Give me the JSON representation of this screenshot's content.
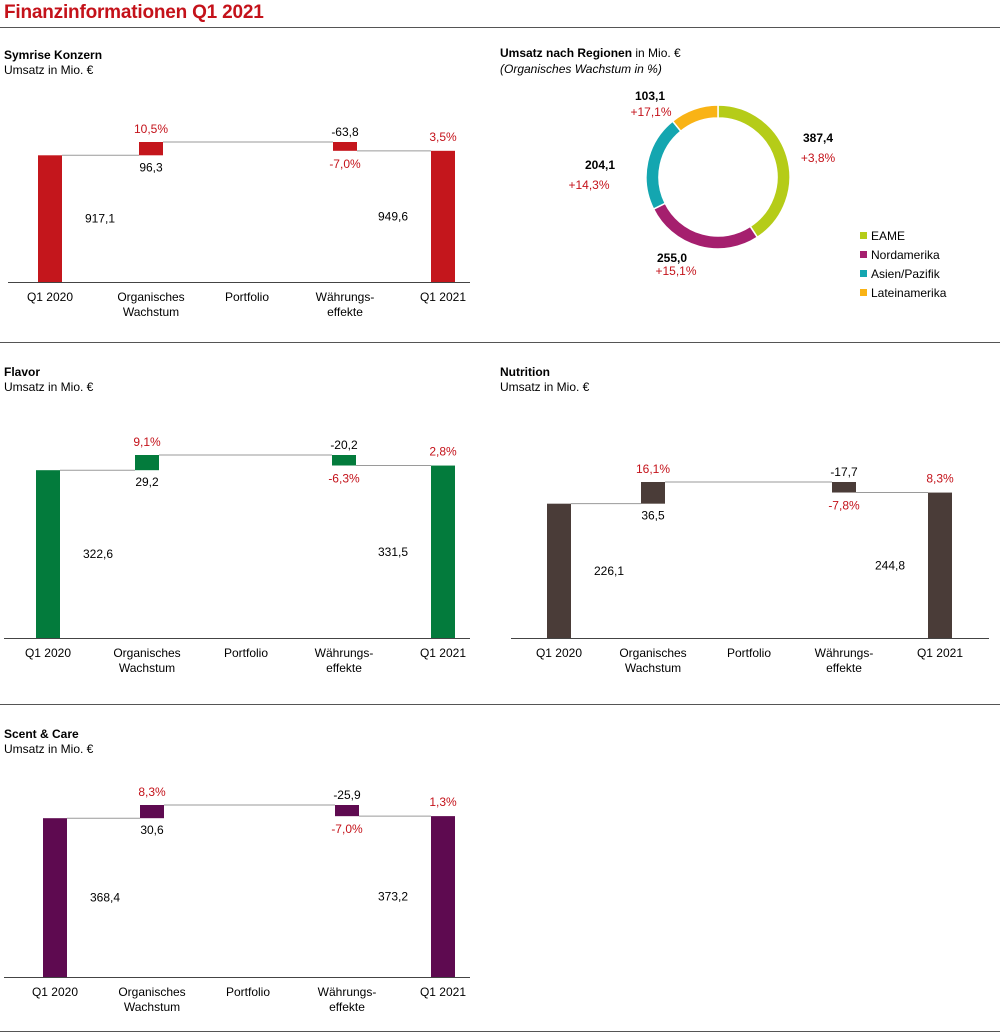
{
  "page_title": "Finanzinformationen Q1 2021",
  "colors": {
    "title_red": "#c4121a",
    "growth_red": "#c4121a",
    "connector": "#9a9a9a",
    "axis": "#444444"
  },
  "region_panel": {
    "title_bold": "Umsatz nach Regionen",
    "title_rest": " in Mio. €",
    "subtitle": "(Organisches Wachstum in %)"
  },
  "chart_data": [
    {
      "id": "konzern",
      "type": "bar",
      "subtype": "waterfall",
      "title": "Symrise Konzern",
      "subtitle": "Umsatz in Mio. €",
      "color": "#c4161c",
      "categories": [
        "Q1 2020",
        "Organisches Wachstum",
        "Portfolio",
        "Währungs-effekte",
        "Q1 2021"
      ],
      "category_lines": [
        [
          "Q1 2020"
        ],
        [
          "Organisches",
          "Wachstum"
        ],
        [
          "Portfolio"
        ],
        [
          "Währungs-",
          "effekte"
        ],
        [
          "Q1 2021"
        ]
      ],
      "values": [
        917.1,
        96.3,
        0,
        -63.8,
        949.6
      ],
      "value_labels": [
        "917,1",
        "96,3",
        "",
        "-63,8",
        "949,6"
      ],
      "growth_labels": [
        "",
        "10,5%",
        "",
        "-7,0%",
        "3,5%"
      ]
    },
    {
      "id": "regionen",
      "type": "pie",
      "subtype": "donut",
      "title": "Umsatz nach Regionen",
      "subtitle": "(Organisches Wachstum in %)",
      "labels": [
        "EAME",
        "Nordamerika",
        "Asien/Pazifik",
        "Lateinamerika"
      ],
      "values": [
        387.4,
        255.0,
        204.1,
        103.1
      ],
      "value_labels": [
        "387,4",
        "255,0",
        "204,1",
        "103,1"
      ],
      "growth_labels": [
        "+3,8%",
        "+15,1%",
        "+14,3%",
        "+17,1%"
      ],
      "colors": [
        "#b5cc18",
        "#a51f6e",
        "#14a6b0",
        "#f9b315"
      ],
      "legend": "right"
    },
    {
      "id": "flavor",
      "type": "bar",
      "subtype": "waterfall",
      "title": "Flavor",
      "subtitle": "Umsatz in Mio. €",
      "color": "#037b3c",
      "categories": [
        "Q1 2020",
        "Organisches Wachstum",
        "Portfolio",
        "Währungs-effekte",
        "Q1 2021"
      ],
      "category_lines": [
        [
          "Q1 2020"
        ],
        [
          "Organisches",
          "Wachstum"
        ],
        [
          "Portfolio"
        ],
        [
          "Währungs-",
          "effekte"
        ],
        [
          "Q1 2021"
        ]
      ],
      "values": [
        322.6,
        29.2,
        0,
        -20.2,
        331.5
      ],
      "value_labels": [
        "322,6",
        "29,2",
        "",
        "-20,2",
        "331,5"
      ],
      "growth_labels": [
        "",
        "9,1%",
        "",
        "-6,3%",
        "2,8%"
      ]
    },
    {
      "id": "nutrition",
      "type": "bar",
      "subtype": "waterfall",
      "title": "Nutrition",
      "subtitle": "Umsatz in Mio. €",
      "color": "#4a3c38",
      "categories": [
        "Q1 2020",
        "Organisches Wachstum",
        "Portfolio",
        "Währungs-effekte",
        "Q1 2021"
      ],
      "category_lines": [
        [
          "Q1 2020"
        ],
        [
          "Organisches",
          "Wachstum"
        ],
        [
          "Portfolio"
        ],
        [
          "Währungs-",
          "effekte"
        ],
        [
          "Q1 2021"
        ]
      ],
      "values": [
        226.1,
        36.5,
        0,
        -17.7,
        244.8
      ],
      "value_labels": [
        "226,1",
        "36,5",
        "",
        "-17,7",
        "244,8"
      ],
      "growth_labels": [
        "",
        "16,1%",
        "",
        "-7,8%",
        "8,3%"
      ]
    },
    {
      "id": "scentcare",
      "type": "bar",
      "subtype": "waterfall",
      "title": "Scent & Care",
      "subtitle": "Umsatz in Mio. €",
      "color": "#5e0a50",
      "categories": [
        "Q1 2020",
        "Organisches Wachstum",
        "Portfolio",
        "Währungs-effekte",
        "Q1 2021"
      ],
      "category_lines": [
        [
          "Q1 2020"
        ],
        [
          "Organisches",
          "Wachstum"
        ],
        [
          "Portfolio"
        ],
        [
          "Währungs-",
          "effekte"
        ],
        [
          "Q1 2021"
        ]
      ],
      "values": [
        368.4,
        30.6,
        0,
        -25.9,
        373.2
      ],
      "value_labels": [
        "368,4",
        "30,6",
        "",
        "-25,9",
        "373,2"
      ],
      "growth_labels": [
        "",
        "8,3%",
        "",
        "-7,0%",
        "1,3%"
      ]
    }
  ]
}
